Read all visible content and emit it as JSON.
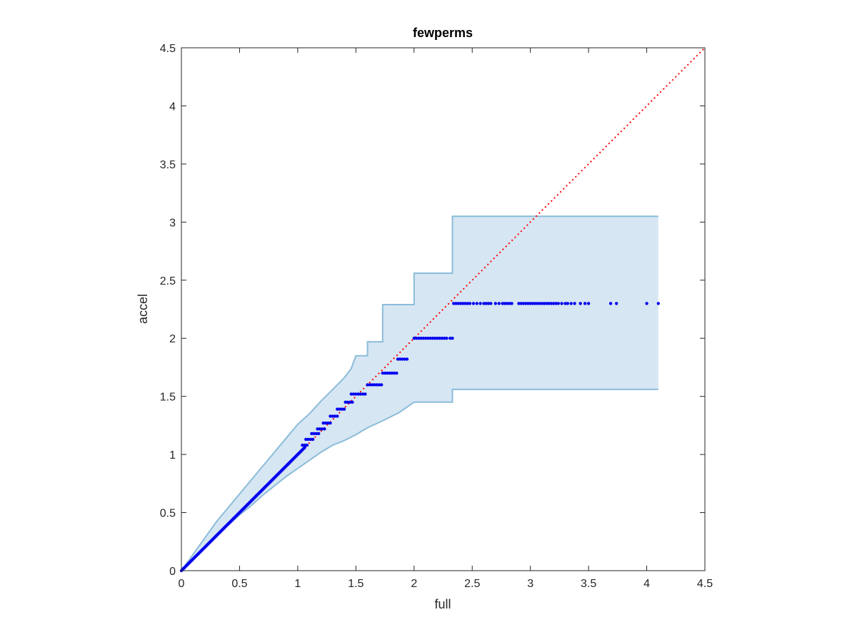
{
  "chart_data": {
    "type": "scatter",
    "title": "fewperms",
    "xlabel": "full",
    "ylabel": "accel",
    "xlim": [
      0,
      4.5
    ],
    "ylim": [
      0,
      4.5
    ],
    "xticks": [
      "0",
      "0.5",
      "1",
      "1.5",
      "2",
      "2.5",
      "3",
      "3.5",
      "4",
      "4.5"
    ],
    "yticks": [
      "0",
      "0.5",
      "1",
      "1.5",
      "2",
      "2.5",
      "3",
      "3.5",
      "4",
      "4.5"
    ],
    "grid": false,
    "reference_line": {
      "style": "dotted",
      "color": "#ff0000",
      "x": [
        0,
        4.5
      ],
      "y": [
        0,
        4.5
      ]
    },
    "band": {
      "color": "#d6e6f3",
      "edge_color": "#8bbcd9",
      "upper": [
        [
          0,
          0
        ],
        [
          0.1,
          0.14
        ],
        [
          0.2,
          0.28
        ],
        [
          0.3,
          0.42
        ],
        [
          0.4,
          0.54
        ],
        [
          0.5,
          0.66
        ],
        [
          0.6,
          0.78
        ],
        [
          0.7,
          0.9
        ],
        [
          0.8,
          1.02
        ],
        [
          0.9,
          1.14
        ],
        [
          1.0,
          1.26
        ],
        [
          1.1,
          1.35
        ],
        [
          1.2,
          1.46
        ],
        [
          1.3,
          1.56
        ],
        [
          1.4,
          1.66
        ],
        [
          1.46,
          1.74
        ],
        [
          1.5,
          1.85
        ],
        [
          1.6,
          1.85
        ],
        [
          1.6,
          1.97
        ],
        [
          1.73,
          1.97
        ],
        [
          1.73,
          2.1
        ],
        [
          1.73,
          2.29
        ],
        [
          1.87,
          2.29
        ],
        [
          2.0,
          2.29
        ],
        [
          2.0,
          2.56
        ],
        [
          2.33,
          2.56
        ],
        [
          2.33,
          3.05
        ],
        [
          4.1,
          3.05
        ]
      ],
      "lower": [
        [
          0,
          0
        ],
        [
          0.1,
          0.1
        ],
        [
          0.2,
          0.2
        ],
        [
          0.3,
          0.3
        ],
        [
          0.4,
          0.39
        ],
        [
          0.5,
          0.48
        ],
        [
          0.6,
          0.56
        ],
        [
          0.7,
          0.65
        ],
        [
          0.8,
          0.73
        ],
        [
          0.9,
          0.81
        ],
        [
          1.0,
          0.88
        ],
        [
          1.1,
          0.95
        ],
        [
          1.2,
          1.02
        ],
        [
          1.3,
          1.08
        ],
        [
          1.4,
          1.12
        ],
        [
          1.5,
          1.17
        ],
        [
          1.6,
          1.23
        ],
        [
          1.73,
          1.29
        ],
        [
          1.87,
          1.36
        ],
        [
          2.0,
          1.45
        ],
        [
          2.33,
          1.45
        ],
        [
          2.33,
          1.56
        ],
        [
          4.1,
          1.56
        ]
      ]
    },
    "series": [
      {
        "color": "#0000ee",
        "diagonal": {
          "x_from": 0.0,
          "x_to": 1.06,
          "count": 160
        },
        "steps": [
          {
            "y": 1.08,
            "x": [
              1.04,
              1.06,
              1.08
            ]
          },
          {
            "y": 1.13,
            "x": [
              1.07,
              1.09,
              1.11,
              1.13
            ]
          },
          {
            "y": 1.18,
            "x": [
              1.12,
              1.14,
              1.16,
              1.18
            ]
          },
          {
            "y": 1.22,
            "x": [
              1.17,
              1.19,
              1.21,
              1.23
            ]
          },
          {
            "y": 1.27,
            "x": [
              1.22,
              1.24,
              1.26,
              1.28
            ]
          },
          {
            "y": 1.33,
            "x": [
              1.28,
              1.3,
              1.32,
              1.34
            ]
          },
          {
            "y": 1.39,
            "x": [
              1.34,
              1.36,
              1.38,
              1.4
            ]
          },
          {
            "y": 1.45,
            "x": [
              1.41,
              1.43,
              1.45,
              1.47
            ]
          },
          {
            "y": 1.52,
            "x": [
              1.46,
              1.48,
              1.5,
              1.52,
              1.54,
              1.56,
              1.58
            ]
          },
          {
            "y": 1.6,
            "x": [
              1.6,
              1.62,
              1.64,
              1.66,
              1.68,
              1.7,
              1.72
            ]
          },
          {
            "y": 1.7,
            "x": [
              1.73,
              1.75,
              1.77,
              1.79,
              1.81,
              1.83,
              1.85
            ]
          },
          {
            "y": 1.82,
            "x": [
              1.86,
              1.88,
              1.9,
              1.92,
              1.94
            ]
          },
          {
            "y": 2.0,
            "x": [
              2.0,
              2.02,
              2.04,
              2.06,
              2.08,
              2.1,
              2.12,
              2.14,
              2.16,
              2.18,
              2.2,
              2.22,
              2.24,
              2.26,
              2.28,
              2.31,
              2.33
            ]
          },
          {
            "y": 2.3,
            "x": [
              2.34,
              2.36,
              2.38,
              2.4,
              2.42,
              2.44,
              2.46,
              2.48,
              2.51,
              2.54,
              2.57,
              2.6,
              2.62,
              2.64,
              2.66,
              2.7,
              2.73,
              2.76,
              2.78,
              2.8,
              2.82,
              2.84,
              2.9,
              2.92,
              2.94,
              2.96,
              2.98,
              3.0,
              3.02,
              3.04,
              3.06,
              3.08,
              3.1,
              3.12,
              3.14,
              3.16,
              3.18,
              3.2,
              3.22,
              3.24,
              3.27,
              3.3,
              3.32,
              3.35,
              3.38,
              3.43,
              3.47,
              3.5,
              3.69,
              3.74,
              4.0,
              4.1
            ]
          }
        ]
      }
    ]
  }
}
